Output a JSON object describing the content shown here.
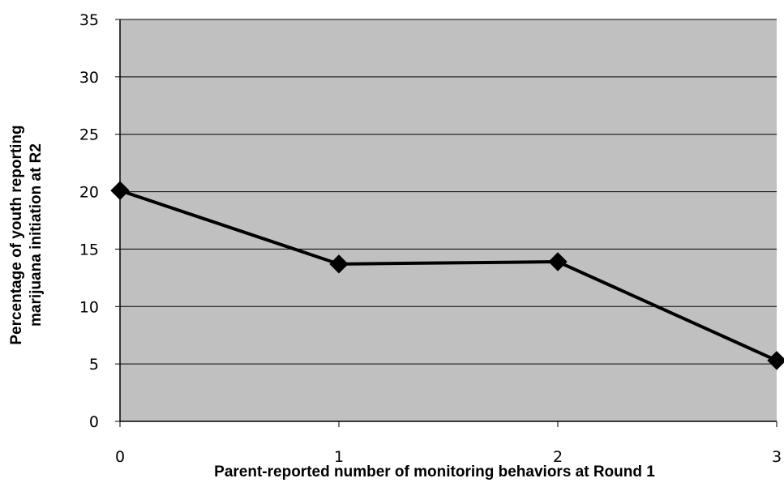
{
  "chart_data": {
    "type": "line",
    "xlabel": "Parent-reported number of monitoring behaviors at Round 1",
    "ylabel_lines": [
      "Percentage of youth reporting",
      "marijuana initiation at R2"
    ],
    "x": [
      0,
      1,
      2,
      3
    ],
    "x_ticks": [
      "0",
      "1",
      "2",
      "3"
    ],
    "y_ticks": [
      "0",
      "5",
      "10",
      "15",
      "20",
      "25",
      "30",
      "35"
    ],
    "y_tick_values": [
      0,
      5,
      10,
      15,
      20,
      25,
      30,
      35
    ],
    "series": [
      {
        "values": [
          20.1,
          13.7,
          13.9,
          5.3
        ]
      }
    ],
    "xlim": [
      0,
      3
    ],
    "ylim": [
      0,
      35
    ],
    "grid": true,
    "plot_background": "#c0c0c0",
    "line_color": "#000000",
    "marker": "diamond"
  }
}
